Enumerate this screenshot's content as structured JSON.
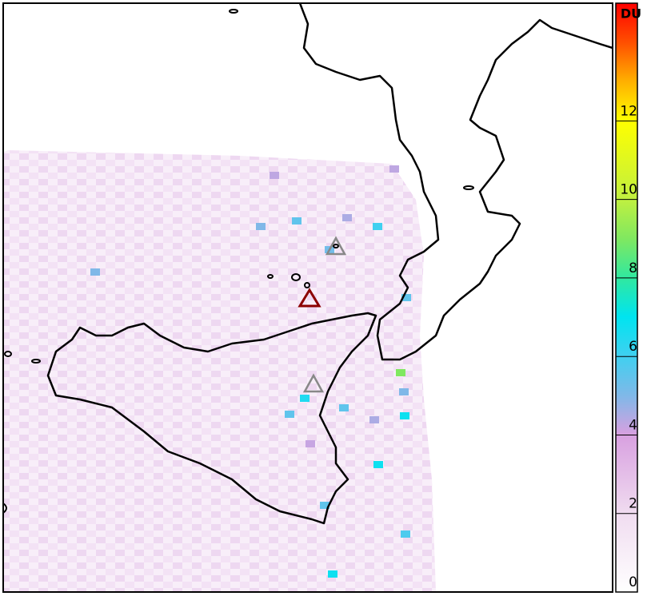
{
  "colorbar": {
    "title": "DU",
    "ticks": [
      0,
      2,
      4,
      6,
      8,
      10,
      12
    ],
    "lim": [
      0,
      15
    ]
  },
  "cells": [
    5.5,
    5,
    6,
    4.5,
    4.3,
    4.3,
    5,
    5.5,
    6.5,
    5.5,
    5.5,
    5,
    6.8,
    4.5,
    9,
    6.8,
    5.5,
    5.8,
    6.8,
    4.2,
    5.2
  ]
}
